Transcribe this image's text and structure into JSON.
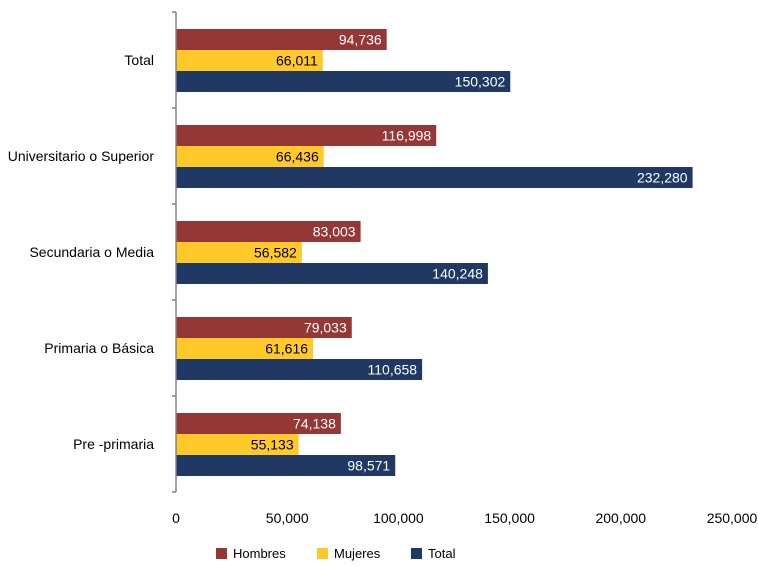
{
  "chart_data": {
    "type": "bar",
    "orientation": "horizontal",
    "title": "",
    "xlabel": "",
    "ylabel": "",
    "xlim": [
      0,
      250000
    ],
    "x_ticks": [
      0,
      50000,
      100000,
      150000,
      200000,
      250000
    ],
    "x_tick_labels": [
      "0",
      "50,000",
      "100,000",
      "150,000",
      "200,000",
      "250,000"
    ],
    "categories": [
      "Total",
      "Universitario o Superior",
      "Secundaria o Media",
      "Primaria o Básica",
      "Pre -primaria"
    ],
    "series": [
      {
        "name": "Hombres",
        "color": "#953735",
        "values": [
          94736,
          116998,
          83003,
          79033,
          74138
        ],
        "labels": [
          "94,736",
          "116,998",
          "83,003",
          "79,033",
          "74,138"
        ]
      },
      {
        "name": "Mujeres",
        "color": "#FFC92A",
        "values": [
          66011,
          66436,
          56582,
          61616,
          55133
        ],
        "labels": [
          "66,011",
          "66,436",
          "56,582",
          "61,616",
          "55,133"
        ]
      },
      {
        "name": "Total",
        "color": "#1F3864",
        "values": [
          150302,
          232280,
          140248,
          110658,
          98571
        ],
        "labels": [
          "150,302",
          "232,280",
          "140,248",
          "110,658",
          "98,571"
        ]
      }
    ],
    "grid": false,
    "legend_position": "bottom"
  }
}
